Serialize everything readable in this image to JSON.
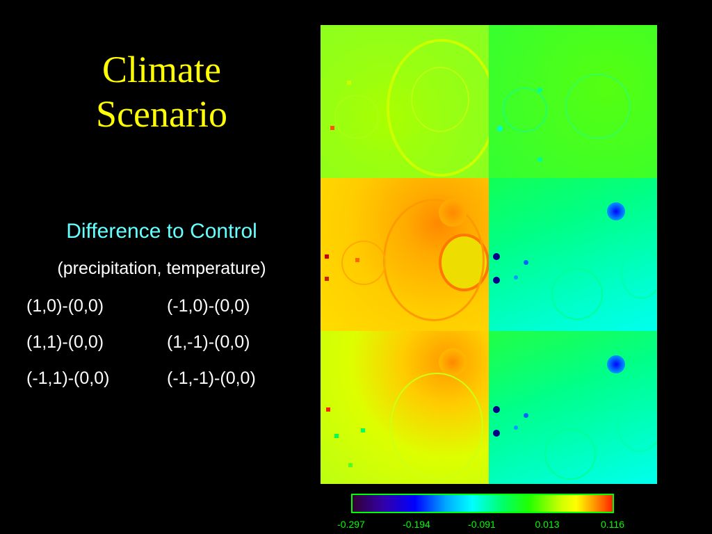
{
  "title": {
    "line1": "Climate",
    "line2": "Scenario"
  },
  "subtitle": "Difference to Control",
  "subsubtitle": "(precipitation, temperature)",
  "combos": [
    {
      "left": "(1,0)-(0,0)",
      "right": "(-1,0)-(0,0)"
    },
    {
      "left": "(1,1)-(0,0)",
      "right": "(1,-1)-(0,0)"
    },
    {
      "left": "(-1,1)-(0,0)",
      "right": "(-1,-1)-(0,0)"
    }
  ],
  "colorbar": {
    "ticks": [
      "-0.297",
      "-0.194",
      "-0.091",
      "0.013",
      "0.116"
    ],
    "range": [
      -0.297,
      0.116
    ]
  },
  "panels": [
    {
      "name": "panel-precip-1-0",
      "base": "#99ff11"
    },
    {
      "name": "panel-temp-neg1-0",
      "base": "#33ff22"
    },
    {
      "name": "panel-precip-1-1",
      "base": "#ffcc00"
    },
    {
      "name": "panel-temp-1-neg1",
      "base": "#00ff88"
    },
    {
      "name": "panel-precip-neg1-1",
      "base": "#ccff11"
    },
    {
      "name": "panel-temp-neg1-neg1",
      "base": "#00ff99"
    }
  ]
}
